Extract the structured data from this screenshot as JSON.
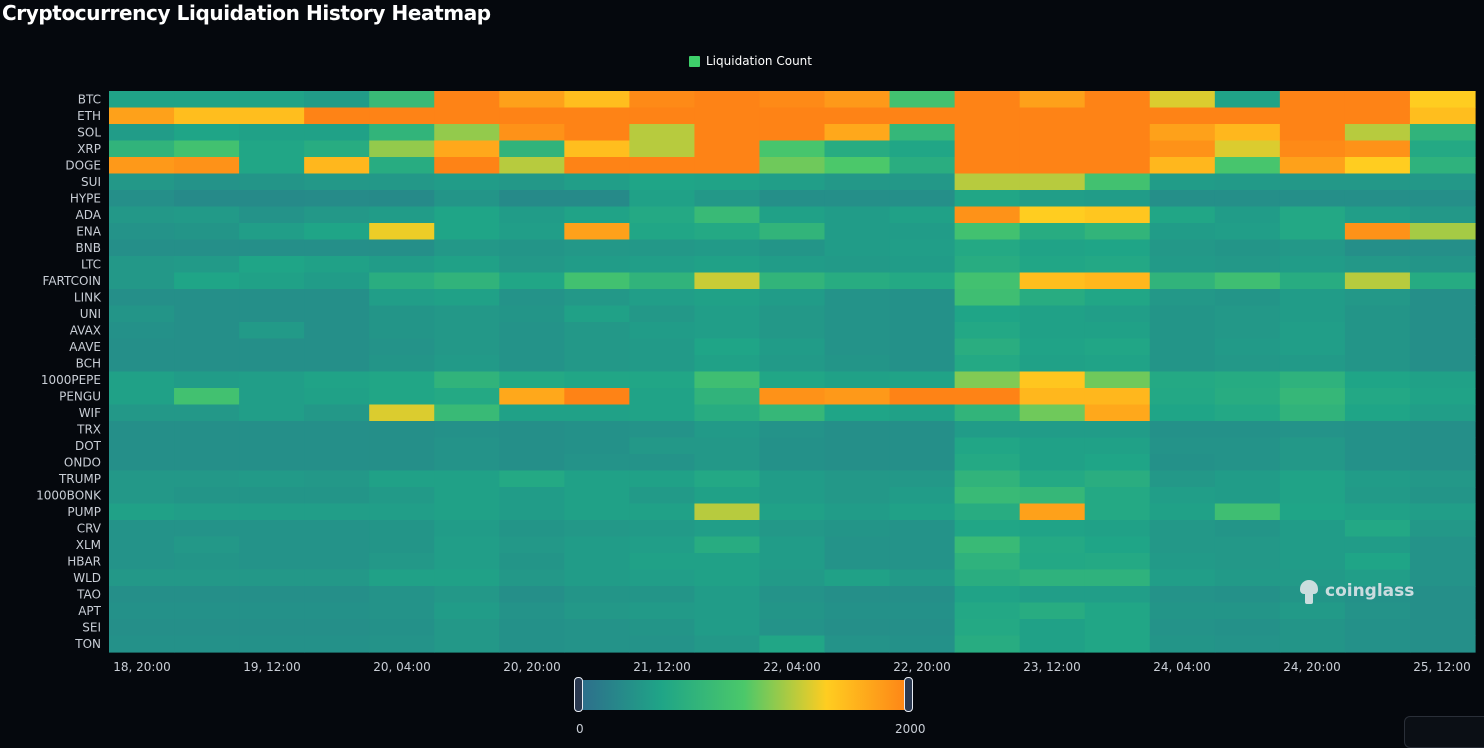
{
  "title": "Cryptocurrency Liquidation History Heatmap",
  "legend": {
    "label": "Liquidation Count",
    "color": "#3ecf6a"
  },
  "watermark": {
    "text": "coinglass",
    "icon": "coinglass-logo-icon"
  },
  "visual_map": {
    "min_label": "0",
    "max_label": "2000",
    "min": 0,
    "max": 2000,
    "colors": [
      "#2e6d8c",
      "#1fa587",
      "#4bc86a",
      "#ffcd20",
      "#fe8316"
    ]
  },
  "chart_data": {
    "type": "heatmap",
    "title": "Cryptocurrency Liquidation History Heatmap",
    "legend": [
      "Liquidation Count"
    ],
    "x_tick_labels": [
      "18, 20:00",
      "19, 12:00",
      "20, 04:00",
      "20, 20:00",
      "21, 12:00",
      "22, 04:00",
      "22, 20:00",
      "23, 12:00",
      "24, 04:00",
      "24, 20:00",
      "25, 12:00"
    ],
    "x_columns": 21,
    "categories": [
      "BTC",
      "ETH",
      "SOL",
      "XRP",
      "DOGE",
      "SUI",
      "HYPE",
      "ADA",
      "ENA",
      "BNB",
      "LTC",
      "FARTCOIN",
      "LINK",
      "UNI",
      "AVAX",
      "AAVE",
      "BCH",
      "1000PEPE",
      "PENGU",
      "WIF",
      "TRX",
      "DOT",
      "ONDO",
      "TRUMP",
      "1000BONK",
      "PUMP",
      "CRV",
      "XLM",
      "HBAR",
      "WLD",
      "TAO",
      "APT",
      "SEI",
      "TON"
    ],
    "value_range": [
      0,
      2000
    ],
    "values": [
      [
        480,
        480,
        480,
        420,
        800,
        2000,
        1800,
        1600,
        1950,
        2000,
        1950,
        1850,
        900,
        2000,
        1800,
        2000,
        1400,
        480,
        2000,
        2000,
        1500
      ],
      [
        1800,
        1600,
        1600,
        2000,
        2000,
        2000,
        2000,
        2000,
        2000,
        2000,
        2000,
        2000,
        2000,
        2000,
        2000,
        2000,
        2000,
        2000,
        2000,
        2000,
        1600
      ],
      [
        420,
        500,
        460,
        460,
        720,
        1200,
        1900,
        2000,
        1300,
        2000,
        2000,
        1750,
        750,
        2000,
        2000,
        2000,
        1800,
        1650,
        2000,
        1300,
        700
      ],
      [
        700,
        900,
        520,
        600,
        1200,
        1750,
        700,
        1600,
        1300,
        2000,
        950,
        600,
        520,
        2000,
        2000,
        2000,
        1900,
        1400,
        1950,
        1900,
        560
      ],
      [
        1850,
        1900,
        520,
        1650,
        600,
        2000,
        1300,
        2000,
        2000,
        2000,
        1100,
        1000,
        620,
        2000,
        2000,
        2000,
        1650,
        950,
        1800,
        1500,
        680
      ],
      [
        380,
        340,
        360,
        380,
        380,
        420,
        380,
        440,
        500,
        480,
        440,
        380,
        380,
        1300,
        1300,
        900,
        420,
        400,
        380,
        380,
        380
      ],
      [
        300,
        260,
        260,
        270,
        260,
        360,
        260,
        260,
        460,
        380,
        300,
        300,
        300,
        520,
        440,
        420,
        300,
        300,
        300,
        300,
        300
      ],
      [
        380,
        400,
        340,
        380,
        420,
        500,
        420,
        480,
        560,
        800,
        460,
        420,
        460,
        1900,
        1500,
        1550,
        520,
        420,
        540,
        440,
        380
      ],
      [
        340,
        360,
        440,
        500,
        1450,
        500,
        440,
        1800,
        520,
        560,
        720,
        420,
        420,
        900,
        600,
        720,
        420,
        440,
        540,
        1900,
        1250
      ],
      [
        300,
        300,
        300,
        300,
        300,
        380,
        360,
        380,
        380,
        400,
        360,
        420,
        440,
        560,
        480,
        500,
        380,
        360,
        380,
        300,
        300
      ],
      [
        380,
        400,
        500,
        460,
        420,
        460,
        380,
        420,
        440,
        460,
        420,
        400,
        420,
        600,
        520,
        540,
        400,
        380,
        420,
        380,
        360
      ],
      [
        380,
        500,
        460,
        420,
        620,
        700,
        520,
        900,
        700,
        1350,
        720,
        600,
        560,
        900,
        1600,
        1650,
        700,
        860,
        600,
        1300,
        580
      ],
      [
        300,
        300,
        300,
        300,
        440,
        460,
        340,
        380,
        440,
        460,
        420,
        340,
        320,
        860,
        600,
        520,
        380,
        360,
        420,
        380,
        300
      ],
      [
        360,
        300,
        300,
        300,
        360,
        380,
        360,
        460,
        380,
        440,
        380,
        340,
        320,
        500,
        460,
        440,
        360,
        380,
        420,
        360,
        300
      ],
      [
        320,
        300,
        400,
        300,
        360,
        380,
        340,
        380,
        420,
        440,
        380,
        340,
        320,
        540,
        460,
        460,
        360,
        380,
        440,
        360,
        300
      ],
      [
        300,
        300,
        300,
        300,
        340,
        380,
        340,
        380,
        400,
        500,
        420,
        340,
        320,
        620,
        480,
        520,
        360,
        400,
        440,
        360,
        300
      ],
      [
        300,
        300,
        300,
        300,
        360,
        400,
        340,
        380,
        400,
        460,
        400,
        360,
        320,
        560,
        460,
        480,
        360,
        380,
        400,
        360,
        300
      ],
      [
        460,
        420,
        440,
        480,
        520,
        700,
        560,
        520,
        520,
        860,
        520,
        460,
        480,
        1150,
        1550,
        1100,
        560,
        580,
        680,
        500,
        460
      ],
      [
        460,
        900,
        440,
        460,
        520,
        560,
        1750,
        2000,
        480,
        700,
        1900,
        1850,
        2000,
        2000,
        1650,
        1650,
        540,
        600,
        760,
        540,
        480
      ],
      [
        380,
        380,
        440,
        380,
        1400,
        800,
        460,
        460,
        480,
        600,
        760,
        500,
        460,
        720,
        1100,
        1750,
        500,
        540,
        700,
        500,
        440
      ],
      [
        300,
        300,
        300,
        300,
        300,
        320,
        300,
        320,
        340,
        400,
        340,
        300,
        300,
        420,
        420,
        420,
        320,
        320,
        340,
        320,
        300
      ],
      [
        300,
        300,
        300,
        300,
        300,
        340,
        300,
        320,
        380,
        380,
        320,
        300,
        300,
        520,
        460,
        460,
        340,
        340,
        380,
        320,
        300
      ],
      [
        300,
        300,
        300,
        300,
        300,
        340,
        300,
        340,
        340,
        380,
        320,
        300,
        300,
        560,
        460,
        500,
        320,
        340,
        380,
        320,
        300
      ],
      [
        380,
        380,
        400,
        380,
        460,
        460,
        560,
        460,
        460,
        540,
        420,
        380,
        380,
        700,
        560,
        620,
        380,
        420,
        480,
        420,
        380
      ],
      [
        380,
        360,
        360,
        360,
        400,
        460,
        420,
        460,
        400,
        460,
        420,
        380,
        420,
        800,
        760,
        560,
        440,
        420,
        480,
        400,
        360
      ],
      [
        460,
        440,
        440,
        440,
        440,
        460,
        420,
        460,
        460,
        1300,
        460,
        420,
        460,
        600,
        1800,
        560,
        460,
        860,
        500,
        460,
        440
      ],
      [
        340,
        340,
        340,
        340,
        360,
        420,
        360,
        380,
        400,
        440,
        380,
        360,
        340,
        520,
        480,
        460,
        380,
        360,
        420,
        540,
        380
      ],
      [
        340,
        380,
        340,
        340,
        360,
        440,
        380,
        420,
        440,
        600,
        420,
        340,
        340,
        800,
        560,
        500,
        380,
        380,
        420,
        420,
        340
      ],
      [
        340,
        360,
        340,
        340,
        380,
        440,
        360,
        420,
        460,
        460,
        420,
        340,
        340,
        680,
        540,
        560,
        400,
        380,
        420,
        500,
        340
      ],
      [
        380,
        380,
        380,
        380,
        460,
        460,
        380,
        420,
        440,
        460,
        400,
        460,
        400,
        620,
        680,
        680,
        440,
        400,
        400,
        440,
        340
      ],
      [
        300,
        300,
        300,
        300,
        340,
        380,
        300,
        360,
        360,
        420,
        340,
        300,
        300,
        480,
        440,
        440,
        340,
        320,
        360,
        320,
        300
      ],
      [
        320,
        320,
        320,
        320,
        340,
        420,
        340,
        380,
        400,
        420,
        360,
        320,
        320,
        540,
        600,
        520,
        360,
        360,
        400,
        340,
        300
      ],
      [
        300,
        300,
        300,
        300,
        320,
        380,
        320,
        340,
        360,
        420,
        340,
        300,
        300,
        560,
        460,
        520,
        340,
        320,
        360,
        320,
        300
      ],
      [
        320,
        320,
        320,
        320,
        340,
        380,
        320,
        340,
        340,
        380,
        520,
        340,
        320,
        600,
        460,
        520,
        360,
        340,
        360,
        320,
        300
      ]
    ]
  }
}
